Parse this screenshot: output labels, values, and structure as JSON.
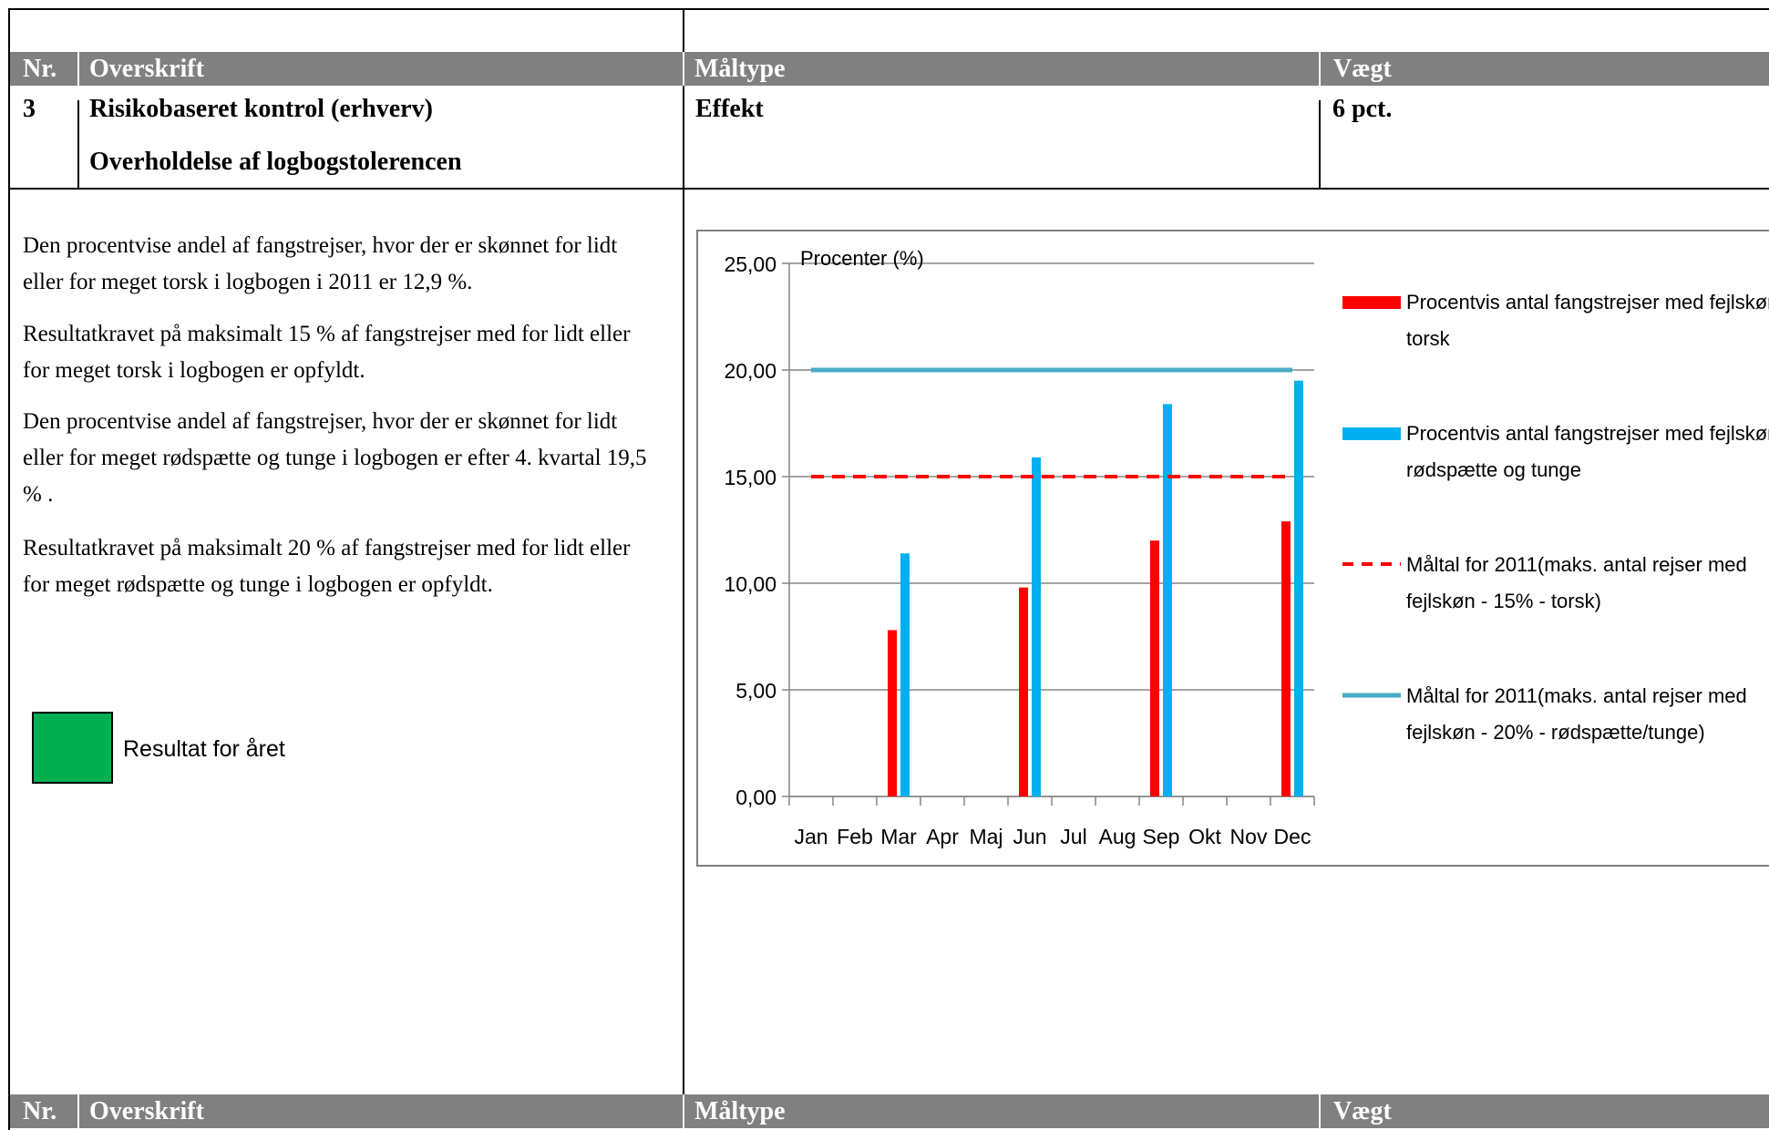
{
  "header": {
    "nr": "Nr.",
    "overskrift": "Overskrift",
    "maaltype": "Måltype",
    "vaegt": "Vægt"
  },
  "row": {
    "nr": "3",
    "title": "Risikobaseret kontrol (erhverv)",
    "subtitle": "Overholdelse af logbogstolerencen",
    "maaltype": "Effekt",
    "vaegt": "6 pct."
  },
  "text": {
    "p1": "Den procentvise andel af fangstrejser, hvor der er skønnet for lidt eller for meget torsk i logbogen i 2011 er 12,9 %.",
    "p2": "Resultatkravet på maksimalt 15 % af fangstrejser med for lidt eller for meget torsk i logbogen er opfyldt.",
    "p3": "Den procentvise andel af fangstrejser, hvor der er skønnet for lidt eller for meget rødspætte og tunge i logbogen er efter 4. kvartal 19,5 % .",
    "p4": "Resultatkravet på maksimalt 20 % af fangstrejser med for lidt eller for meget rødspætte og tunge i logbogen er opfyldt."
  },
  "result": {
    "label": "Resultat for året",
    "color": "#00b050"
  },
  "chart_data": {
    "type": "bar",
    "ylabel": "Procenter (%)",
    "ylim": [
      0,
      25
    ],
    "yticks": [
      "0,00",
      "5,00",
      "10,00",
      "15,00",
      "20,00",
      "25,00"
    ],
    "grid": true,
    "legend_position": "right",
    "categories": [
      "Jan",
      "Feb",
      "Mar",
      "Apr",
      "Maj",
      "Jun",
      "Jul",
      "Aug",
      "Sep",
      "Okt",
      "Nov",
      "Dec"
    ],
    "series": [
      {
        "name": "Procentvis antal fangstrejser med fejlskøn, torsk",
        "kind": "bar",
        "color": "#ff0000",
        "values": [
          null,
          null,
          7.8,
          null,
          null,
          9.8,
          null,
          null,
          12.0,
          null,
          null,
          12.9
        ]
      },
      {
        "name": "Procentvis antal fangstrejser med fejlskøn, rødspætte og tunge",
        "kind": "bar",
        "color": "#00b0f0",
        "values": [
          null,
          null,
          11.4,
          null,
          null,
          15.9,
          null,
          null,
          18.4,
          null,
          null,
          19.5
        ]
      },
      {
        "name": "Måltal for 2011(maks. antal rejser med fejlskøn - 15% - torsk)",
        "kind": "dashed-line",
        "color": "#ff0000",
        "value": 15
      },
      {
        "name": "Måltal for 2011(maks. antal rejser med fejlskøn - 20% - rødspætte/tunge)",
        "kind": "line",
        "color": "#4bacc6",
        "value": 20
      }
    ],
    "legend": [
      [
        "Procentvis antal fangstrejser med fejlskøn,",
        "torsk"
      ],
      [
        "Procentvis antal fangstrejser med fejlskøn,",
        "rødspætte og tunge"
      ],
      [
        "Måltal for 2011(maks. antal rejser med",
        "fejlskøn - 15% - torsk)"
      ],
      [
        "Måltal for 2011(maks. antal rejser med",
        "fejlskøn - 20% - rødspætte/tunge)"
      ]
    ]
  }
}
